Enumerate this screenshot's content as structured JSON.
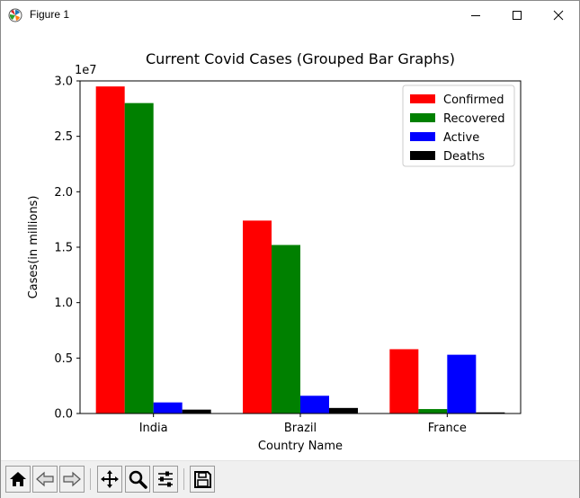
{
  "window": {
    "title": "Figure 1",
    "controls": {
      "minimize": "minimize",
      "maximize": "maximize",
      "close": "close"
    }
  },
  "toolbar": {
    "buttons": [
      {
        "name": "home-icon",
        "label": "Home"
      },
      {
        "name": "back-icon",
        "label": "Back"
      },
      {
        "name": "forward-icon",
        "label": "Forward"
      },
      {
        "name": "pan-icon",
        "label": "Pan"
      },
      {
        "name": "zoom-icon",
        "label": "Zoom"
      },
      {
        "name": "configure-subplots-icon",
        "label": "Configure subplots"
      },
      {
        "name": "save-icon",
        "label": "Save"
      }
    ]
  },
  "chart_data": {
    "type": "bar",
    "title": "Current Covid Cases (Grouped Bar Graphs)",
    "xlabel": "Country Name",
    "ylabel": "Cases(in millions)",
    "offset_text": "1e7",
    "categories": [
      "India",
      "Brazil",
      "France"
    ],
    "ylim": [
      0,
      3.0
    ],
    "yticks": [
      "0.0",
      "0.5",
      "1.0",
      "1.5",
      "2.0",
      "2.5",
      "3.0"
    ],
    "y_scale_multiplier": 10000000,
    "series": [
      {
        "name": "Confirmed",
        "color": "#ff0000",
        "values": [
          2.95,
          1.74,
          0.58
        ]
      },
      {
        "name": "Recovered",
        "color": "#008000",
        "values": [
          2.8,
          1.52,
          0.04
        ]
      },
      {
        "name": "Active",
        "color": "#0000ff",
        "values": [
          0.1,
          0.16,
          0.53
        ]
      },
      {
        "name": "Deaths",
        "color": "#000000",
        "values": [
          0.035,
          0.05,
          0.01
        ]
      }
    ],
    "legend_position": "top-right",
    "grid": false
  }
}
